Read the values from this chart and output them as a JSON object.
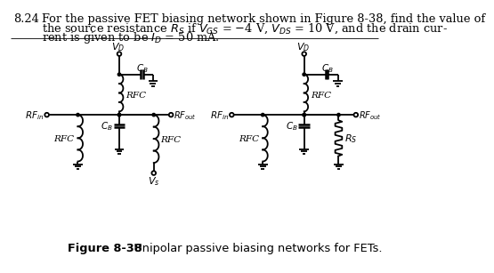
{
  "bg": "#ffffff",
  "lc": "#000000",
  "problem_num": "8.24",
  "line1": "For the passive FET biasing network shown in Figure 8-38, find the value of",
  "line2": "the source resistance $R_S$ if $V_{GS}$ = −4 V, $V_{DS}$ = 10 V, and the drain cur-",
  "line3": "rent is given to be $I_D$ = 50 mA.",
  "caption_bold": "Figure 8-38",
  "caption_rest": "   Unipolar passive biasing networks for FETs."
}
